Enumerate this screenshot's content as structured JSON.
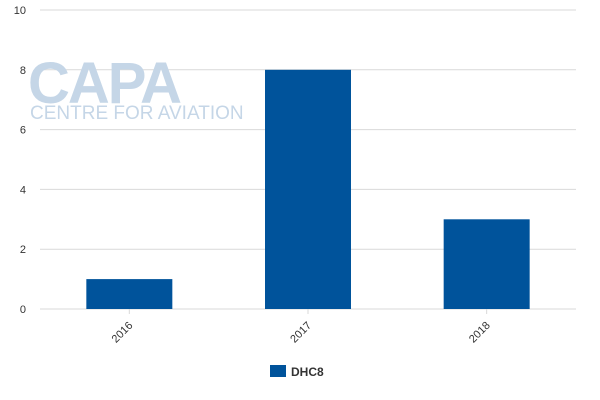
{
  "watermark": {
    "logo": "CAPA",
    "tagline": "CENTRE FOR AVIATION"
  },
  "chart_data": {
    "type": "bar",
    "categories": [
      "2016",
      "2017",
      "2018"
    ],
    "series": [
      {
        "name": "DHC8",
        "values": [
          1,
          8,
          3
        ],
        "color": "#00539b"
      }
    ],
    "title": "",
    "xlabel": "",
    "ylabel": "",
    "ylim": [
      0,
      10
    ],
    "yticks": [
      "0",
      "2",
      "4",
      "6",
      "8",
      "10"
    ],
    "grid": true,
    "legend": "bottom-center",
    "colors": {
      "grid": "#d9d9d9",
      "axis_text": "#333333",
      "watermark": "#c5d6e7"
    }
  }
}
